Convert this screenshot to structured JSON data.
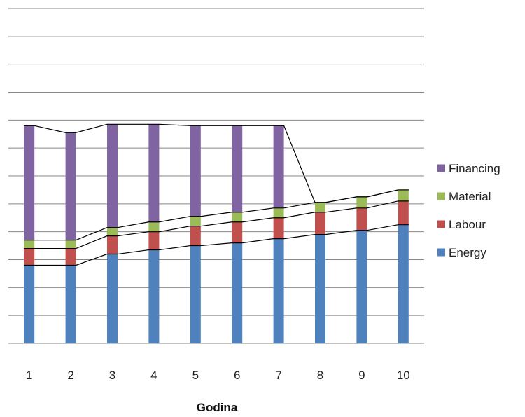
{
  "chart_data": {
    "type": "bar",
    "stacked": true,
    "title": "",
    "xlabel": "Godina",
    "ylabel": "",
    "categories": [
      "1",
      "2",
      "3",
      "4",
      "5",
      "6",
      "7",
      "8",
      "9",
      "10"
    ],
    "ylim": [
      0,
      12
    ],
    "gridlines": 12,
    "y_tick_labels_shown": false,
    "grid": true,
    "connector_lines": true,
    "legend_position": "right",
    "series": [
      {
        "name": "Energy",
        "color": "#4f81bd",
        "values": [
          2.8,
          2.8,
          3.2,
          3.35,
          3.5,
          3.6,
          3.75,
          3.9,
          4.05,
          4.25
        ]
      },
      {
        "name": "Labour",
        "color": "#c0504d",
        "values": [
          0.6,
          0.6,
          0.65,
          0.65,
          0.7,
          0.75,
          0.75,
          0.8,
          0.8,
          0.85
        ]
      },
      {
        "name": "Material",
        "color": "#9bbb59",
        "values": [
          0.3,
          0.3,
          0.3,
          0.35,
          0.35,
          0.35,
          0.35,
          0.35,
          0.4,
          0.4
        ]
      },
      {
        "name": "Financing",
        "color": "#8064a2",
        "values": [
          4.1,
          3.85,
          3.7,
          3.5,
          3.25,
          3.1,
          2.95,
          0,
          0,
          0
        ]
      }
    ]
  }
}
